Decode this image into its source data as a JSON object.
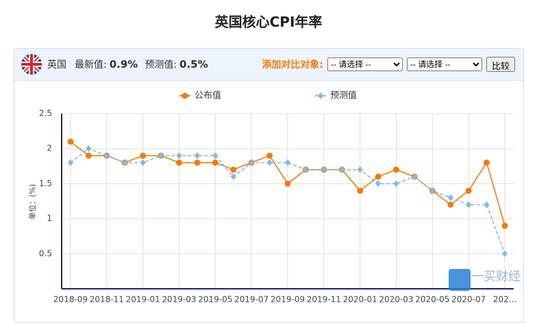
{
  "title": "英国核心CPI年率",
  "panel": {
    "country": "英国",
    "latest_label": "最新值:",
    "latest_value": "0.9%",
    "forecast_label": "预测值:",
    "forecast_value": "0.5%",
    "compare_label": "添加对比对象:",
    "select_1": "-- 请选择 --",
    "select_2": "-- 请选择 --",
    "button": "比较"
  },
  "watermark": "一买财经",
  "chart_data": {
    "type": "line",
    "y_label": "单位：(%)",
    "categories": [
      "2018-09",
      null,
      "2018-11",
      null,
      "2019-01",
      null,
      "2019-03",
      null,
      "2019-05",
      null,
      "2019-07",
      null,
      "2019-09",
      null,
      "2019-11",
      null,
      "2020-01",
      null,
      "2020-03",
      null,
      "2020-05",
      null,
      "2020-07",
      null,
      "202..."
    ],
    "series": [
      {
        "name": "公布值",
        "color": "#f07c0a",
        "marker": "circle",
        "dashed": false,
        "values": [
          2.1,
          1.9,
          1.9,
          1.8,
          1.9,
          1.9,
          1.8,
          1.8,
          1.8,
          1.7,
          1.8,
          1.9,
          1.5,
          1.7,
          1.7,
          1.7,
          1.4,
          1.6,
          1.7,
          1.6,
          1.4,
          1.2,
          1.4,
          1.8,
          0.9
        ]
      },
      {
        "name": "预测值",
        "color": "#87b7e3",
        "marker": "diamond",
        "dashed": true,
        "values": [
          1.8,
          2.0,
          1.9,
          1.8,
          1.8,
          1.9,
          1.9,
          1.9,
          1.9,
          1.6,
          1.8,
          1.8,
          1.8,
          1.7,
          1.7,
          1.7,
          1.7,
          1.5,
          1.5,
          1.6,
          1.4,
          1.3,
          1.2,
          1.2,
          0.5
        ]
      }
    ],
    "ylim": [
      0,
      2.5
    ],
    "yticks": [
      0.5,
      1,
      1.5,
      2,
      2.5
    ],
    "grid": true
  }
}
